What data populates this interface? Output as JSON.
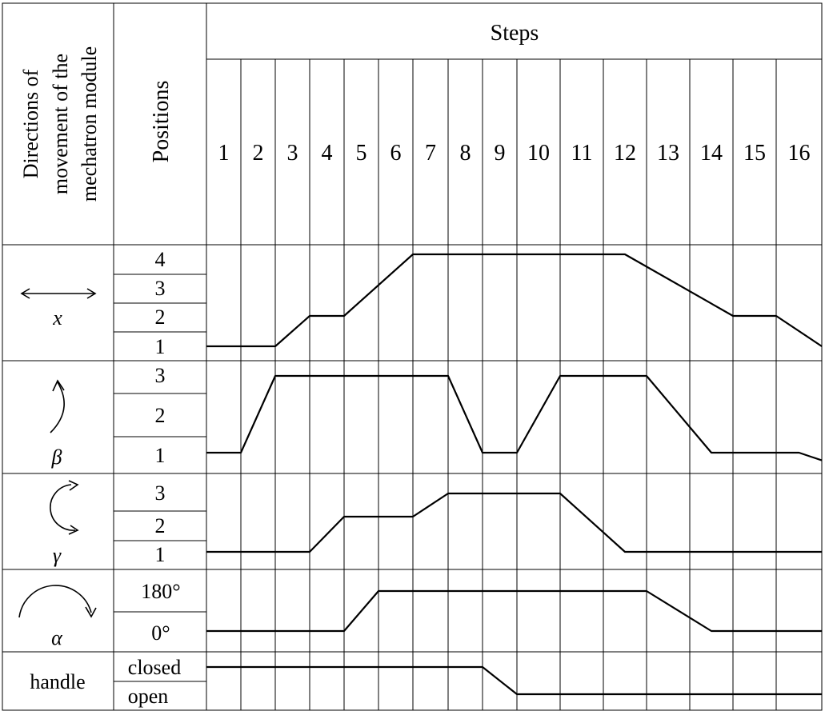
{
  "header": {
    "col1_lines": [
      "Directions of",
      "movement of the",
      "mechatron module"
    ],
    "col2": "Positions",
    "steps_title": "Steps",
    "steps": [
      "1",
      "2",
      "3",
      "4",
      "5",
      "6",
      "7",
      "8",
      "9",
      "10",
      "11",
      "12",
      "13",
      "14",
      "15",
      "16"
    ]
  },
  "rows": [
    {
      "id": "x",
      "direction_label": "x",
      "icon": "double-arrow-icon",
      "positions": [
        "4",
        "3",
        "2",
        "1"
      ],
      "trace": [
        [
          0,
          1
        ],
        [
          2,
          1
        ],
        [
          3,
          2
        ],
        [
          4,
          2
        ],
        [
          6,
          4
        ],
        [
          11.5,
          4
        ],
        [
          14,
          2
        ],
        [
          15,
          2
        ],
        [
          16,
          1
        ],
        [
          17,
          1
        ]
      ]
    },
    {
      "id": "beta",
      "direction_label": "β",
      "icon": "curved-up-arrow-icon",
      "positions": [
        "3",
        "2",
        "1"
      ],
      "trace": [
        [
          0,
          1
        ],
        [
          1,
          1
        ],
        [
          2,
          3
        ],
        [
          7,
          3
        ],
        [
          8,
          1
        ],
        [
          9,
          1
        ],
        [
          10,
          3
        ],
        [
          12,
          3
        ],
        [
          13.5,
          1
        ],
        [
          15.5,
          1
        ],
        [
          17,
          0.8
        ]
      ]
    },
    {
      "id": "gamma",
      "direction_label": "γ",
      "icon": "circular-arrow-icon",
      "positions": [
        "3",
        "2",
        "1"
      ],
      "trace": [
        [
          0,
          1
        ],
        [
          3,
          1
        ],
        [
          4,
          2
        ],
        [
          6,
          2
        ],
        [
          7,
          3
        ],
        [
          10,
          3
        ],
        [
          11.5,
          1
        ],
        [
          17,
          1
        ]
      ]
    },
    {
      "id": "alpha",
      "direction_label": "α",
      "icon": "arc-arrow-icon",
      "positions": [
        "180°",
        "0°"
      ],
      "trace": [
        [
          0,
          "0°"
        ],
        [
          4,
          "0°"
        ],
        [
          5,
          "180°"
        ],
        [
          12,
          "180°"
        ],
        [
          13.5,
          "0°"
        ],
        [
          17,
          "0°"
        ]
      ]
    },
    {
      "id": "handle",
      "direction_label": "handle",
      "icon": "",
      "positions": [
        "closed",
        "open"
      ],
      "trace": [
        [
          0,
          "closed"
        ],
        [
          8,
          "closed"
        ],
        [
          9,
          "open"
        ],
        [
          17,
          "open"
        ]
      ]
    }
  ]
}
